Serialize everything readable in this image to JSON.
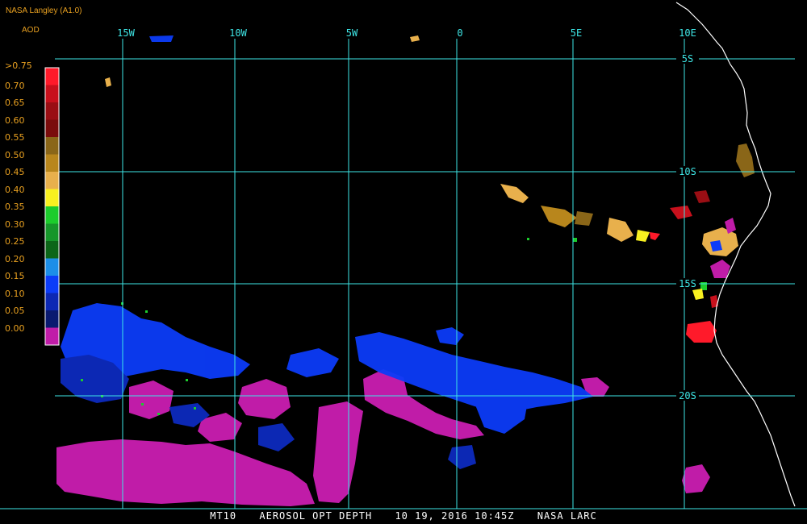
{
  "header": {
    "source": "NASA Langley (A1.0)",
    "product": "AOD"
  },
  "legend": {
    "labels": [
      ">0.75",
      "0.70",
      "0.65",
      "0.60",
      "0.55",
      "0.50",
      "0.45",
      "0.40",
      "0.35",
      "0.30",
      "0.25",
      "0.20",
      "0.15",
      "0.10",
      "0.05",
      "0.00"
    ],
    "colors": [
      "#ff1a2a",
      "#c8101c",
      "#9a0e14",
      "#7a0c0c",
      "#8a6618",
      "#b8861c",
      "#e8b04c",
      "#f8f020",
      "#1ccc2c",
      "#16962a",
      "#0c6618",
      "#1c8ee8",
      "#0c3cf8",
      "#0c28b4",
      "#0a1a70",
      "#c01ca8"
    ]
  },
  "grid": {
    "lon_labels": [
      "15W",
      "10W",
      "5W",
      "0",
      "5E",
      "10E"
    ],
    "lat_labels": [
      "5S",
      "10S",
      "15S",
      "20S"
    ],
    "line_color": "#3ee6e6"
  },
  "footer": {
    "satellite": "MT10",
    "product": "AEROSOL OPT DEPTH",
    "datetime": "10 19, 2016 10:45Z",
    "org": "NASA LARC"
  }
}
